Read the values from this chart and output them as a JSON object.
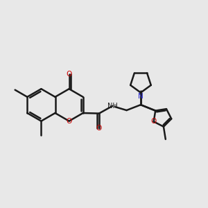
{
  "background_color": "#e8e8e8",
  "bond_color": "#1a1a1a",
  "oxygen_color": "#cc0000",
  "nitrogen_color": "#2222cc",
  "line_width": 1.8,
  "figsize": [
    3.0,
    3.0
  ],
  "dpi": 100,
  "xlim": [
    0.0,
    10.5
  ],
  "ylim": [
    2.5,
    10.0
  ]
}
